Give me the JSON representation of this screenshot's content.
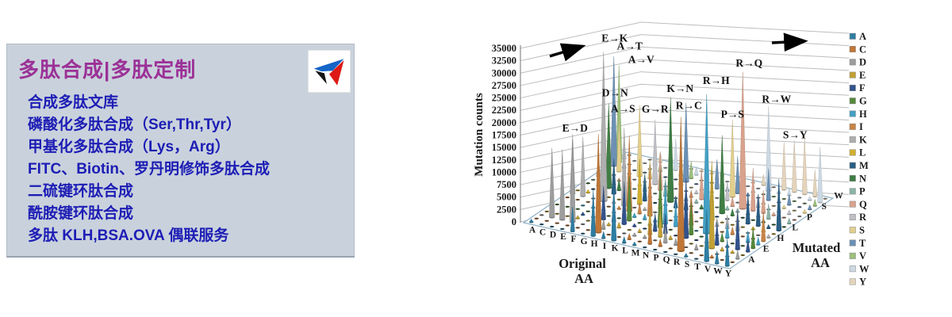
{
  "panel": {
    "title": "多肽合成|多肽定制",
    "services": [
      "合成多肽文库",
      "磷酸化多肽合成（Ser,Thr,Tyr）",
      "甲基化多肽合成（Lys，Arg）",
      "FITC、Biotin、罗丹明修饰多肽合成",
      "二硫键环肽合成",
      "酰胺键环肽合成",
      "多肽 KLH,BSA.OVA 偶联服务"
    ],
    "colors": {
      "background": "#c9d2dc",
      "title": "#9b3197",
      "text": "#1d1db5"
    },
    "logo": {
      "name": "triangle-logo",
      "colors": [
        "#1565c6",
        "#141414",
        "#dd1a15"
      ]
    }
  },
  "chart_data": {
    "type": "3d-cone-column",
    "title": "",
    "ylabel": "Mutation counts",
    "xlabel": "Original AA",
    "zlabel": "Mutated AA",
    "ylim": [
      0,
      35000
    ],
    "ytick_step": 2500,
    "yticks": [
      "0",
      "2500",
      "5000",
      "7500",
      "10000",
      "12500",
      "15000",
      "17500",
      "20000",
      "22500",
      "25000",
      "27500",
      "30000",
      "32500",
      "35000"
    ],
    "x_categories": [
      "A",
      "C",
      "D",
      "E",
      "F",
      "G",
      "H",
      "I",
      "K",
      "L",
      "M",
      "N",
      "P",
      "Q",
      "R",
      "S",
      "T",
      "V",
      "W",
      "Y"
    ],
    "z_categories": [
      "A",
      "C",
      "D",
      "E",
      "F",
      "G",
      "H",
      "I",
      "K",
      "L",
      "M",
      "N",
      "P",
      "Q",
      "R",
      "S",
      "T",
      "V",
      "W",
      "Y"
    ],
    "z_tick_labels_shown": [
      "A",
      "E",
      "H",
      "L",
      "P",
      "S",
      "W"
    ],
    "grid": true,
    "legend_position": "right",
    "legend": [
      {
        "label": "A",
        "color": "#2e7da2"
      },
      {
        "label": "C",
        "color": "#bf7636"
      },
      {
        "label": "D",
        "color": "#9d9d9d"
      },
      {
        "label": "E",
        "color": "#c3a136"
      },
      {
        "label": "F",
        "color": "#32538c"
      },
      {
        "label": "G",
        "color": "#55883b"
      },
      {
        "label": "H",
        "color": "#44a0c4"
      },
      {
        "label": "I",
        "color": "#c98446"
      },
      {
        "label": "K",
        "color": "#aeaeae"
      },
      {
        "label": "L",
        "color": "#d1b02f"
      },
      {
        "label": "M",
        "color": "#2a5d84"
      },
      {
        "label": "N",
        "color": "#3f7d44"
      },
      {
        "label": "P",
        "color": "#8cb5a9"
      },
      {
        "label": "Q",
        "color": "#d9a28c"
      },
      {
        "label": "R",
        "color": "#bfc0c6"
      },
      {
        "label": "S",
        "color": "#e2cf8d"
      },
      {
        "label": "T",
        "color": "#6c90b4"
      },
      {
        "label": "V",
        "color": "#9cc07e"
      },
      {
        "label": "W",
        "color": "#ccd9e4"
      },
      {
        "label": "Y",
        "color": "#e4d4bc"
      }
    ],
    "labeled_peaks": [
      {
        "label": "E→D",
        "original": "E",
        "mutated": "D",
        "value": 16500
      },
      {
        "label": "E→K",
        "original": "E",
        "mutated": "K",
        "value": 30000
      },
      {
        "label": "A→T",
        "original": "A",
        "mutated": "T",
        "value": 22000
      },
      {
        "label": "A→V",
        "original": "A",
        "mutated": "V",
        "value": 19500
      },
      {
        "label": "D→N",
        "original": "D",
        "mutated": "N",
        "value": 17000
      },
      {
        "label": "A→S",
        "original": "A",
        "mutated": "S",
        "value": 12000
      },
      {
        "label": "G→R",
        "original": "G",
        "mutated": "R",
        "value": 13000
      },
      {
        "label": "K→N",
        "original": "K",
        "mutated": "N",
        "value": 21000
      },
      {
        "label": "R→C",
        "original": "R",
        "mutated": "C",
        "value": 27000
      },
      {
        "label": "R→H",
        "original": "R",
        "mutated": "H",
        "value": 28000
      },
      {
        "label": "R→Q",
        "original": "R",
        "mutated": "Q",
        "value": 27500
      },
      {
        "label": "P→S",
        "original": "P",
        "mutated": "S",
        "value": 15500
      },
      {
        "label": "R→W",
        "original": "R",
        "mutated": "W",
        "value": 17000
      },
      {
        "label": "S→Y",
        "original": "S",
        "mutated": "Y",
        "value": 9500
      }
    ],
    "annotations": {
      "arrows": [
        "diagonal up-right black arrow at plot top-left",
        "horizontal right black arrow at plot top-right"
      ],
      "floor": "grid of small dark dashes marks near-zero cells of the 20×20 substitution matrix"
    }
  }
}
